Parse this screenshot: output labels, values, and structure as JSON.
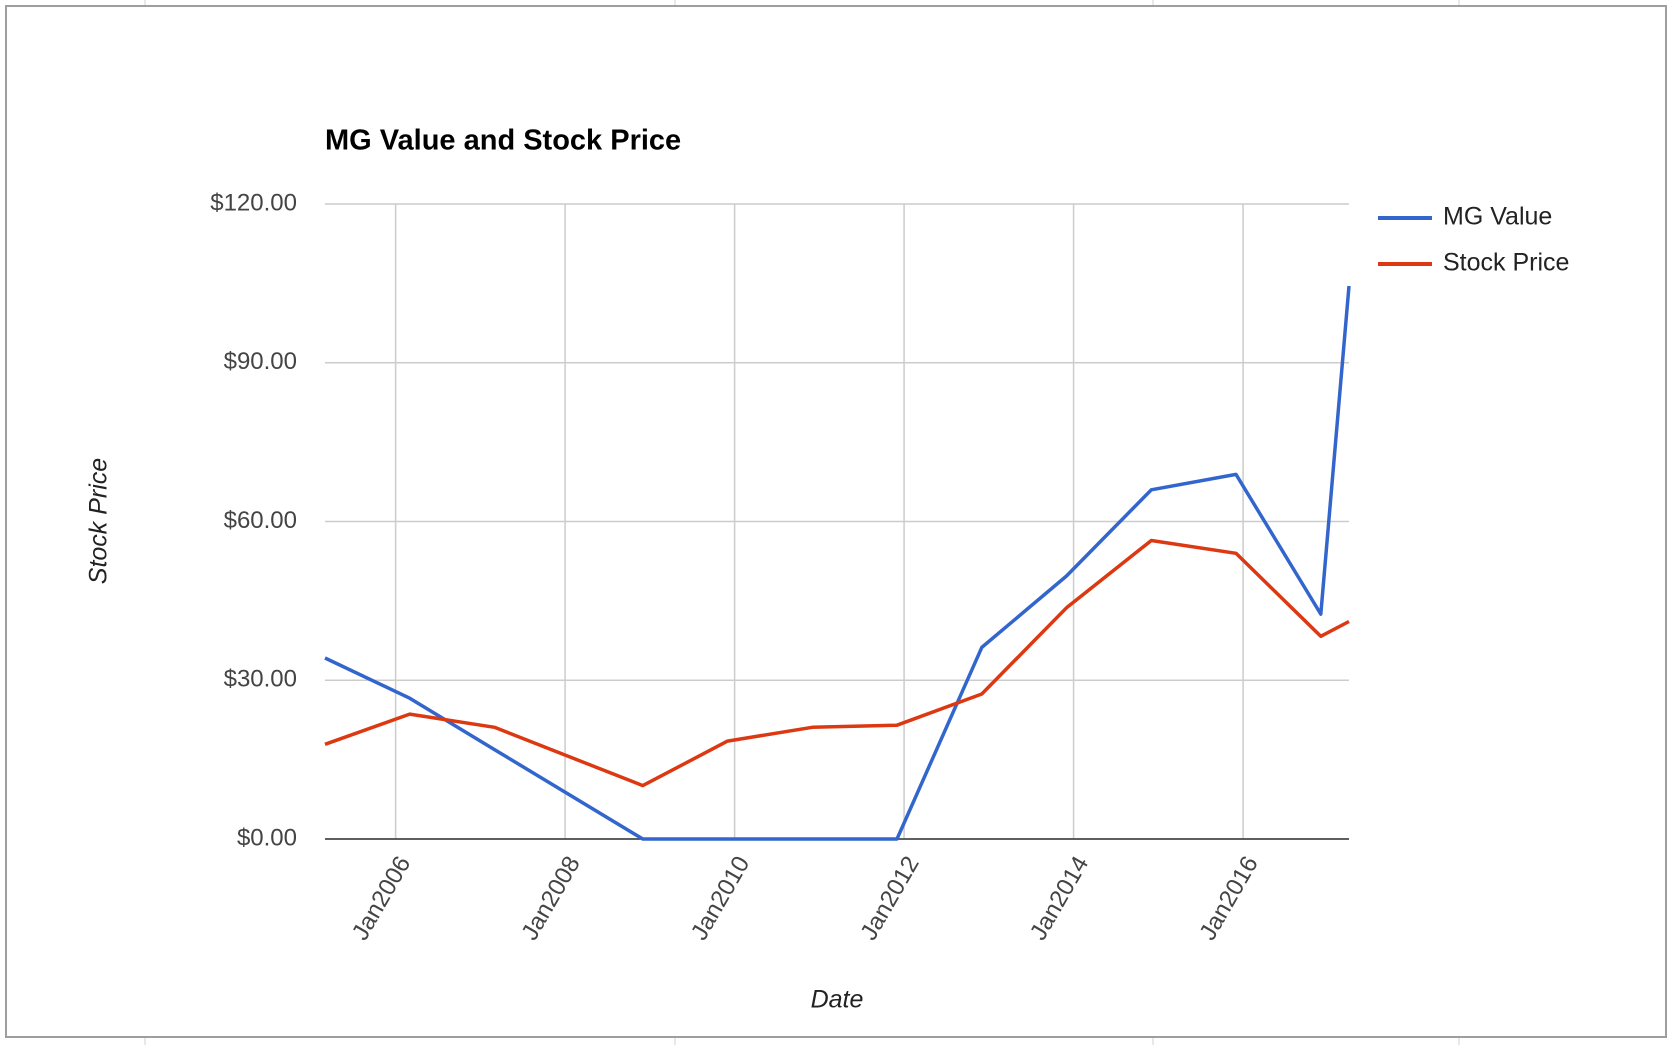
{
  "chart_data": {
    "type": "line",
    "title": "MG Value and Stock Price",
    "x_label": "Date",
    "y_label": "Stock Price",
    "x": [
      "2005-03",
      "2006-03",
      "2007-03",
      "2008-12",
      "2009-12",
      "2010-12",
      "2011-12",
      "2012-12",
      "2013-12",
      "2014-12",
      "2015-12",
      "2016-12",
      "2017-04"
    ],
    "series": [
      {
        "name": "MG Value",
        "color": "#3366cc",
        "values": [
          34.2,
          26.6,
          16.9,
          0,
          0,
          0,
          0,
          36.2,
          49.7,
          66,
          68.9,
          42.5,
          104.5
        ]
      },
      {
        "name": "Stock Price",
        "color": "#dc3912",
        "values": [
          17.9,
          23.6,
          21.1,
          10.1,
          18.5,
          21.1,
          21.5,
          27.4,
          43.7,
          56.4,
          54,
          38.3,
          41.1
        ]
      }
    ],
    "xlim": [
      "2005-03",
      "2017-04"
    ],
    "xticks": [
      {
        "value": "2006-01",
        "label": "Jan2006"
      },
      {
        "value": "2008-01",
        "label": "Jan2008"
      },
      {
        "value": "2010-01",
        "label": "Jan2010"
      },
      {
        "value": "2012-01",
        "label": "Jan2012"
      },
      {
        "value": "2014-01",
        "label": "Jan2014"
      },
      {
        "value": "2016-01",
        "label": "Jan2016"
      }
    ],
    "ylim": [
      0,
      120
    ],
    "yticks": [
      {
        "value": 0,
        "label": "$0.00"
      },
      {
        "value": 30,
        "label": "$30.00"
      },
      {
        "value": 60,
        "label": "$60.00"
      },
      {
        "value": 90,
        "label": "$90.00"
      },
      {
        "value": 120,
        "label": "$120.00"
      }
    ],
    "grid": true,
    "legend": "right"
  }
}
